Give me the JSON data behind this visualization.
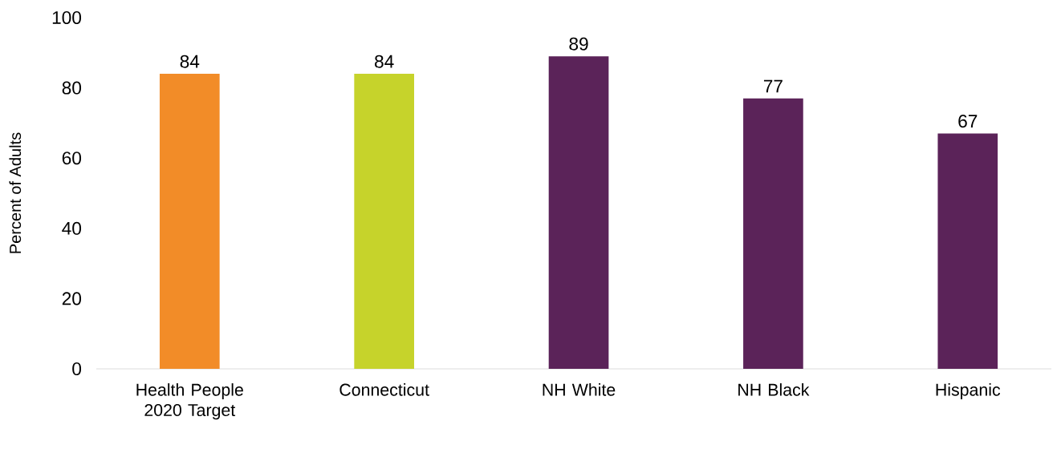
{
  "chart_data": {
    "type": "bar",
    "ylabel": "Percent of Adults",
    "categories": [
      "Health People 2020 Target",
      "Connecticut",
      "NH White",
      "NH Black",
      "Hispanic"
    ],
    "values": [
      84,
      84,
      89,
      77,
      67
    ],
    "colors": [
      "#f28c28",
      "#c6d32b",
      "#5b2359",
      "#5b2359",
      "#5b2359"
    ],
    "ylim": [
      0,
      100
    ],
    "yticks": [
      0,
      20,
      40,
      60,
      80,
      100
    ],
    "grid": false,
    "data_labels": true
  }
}
